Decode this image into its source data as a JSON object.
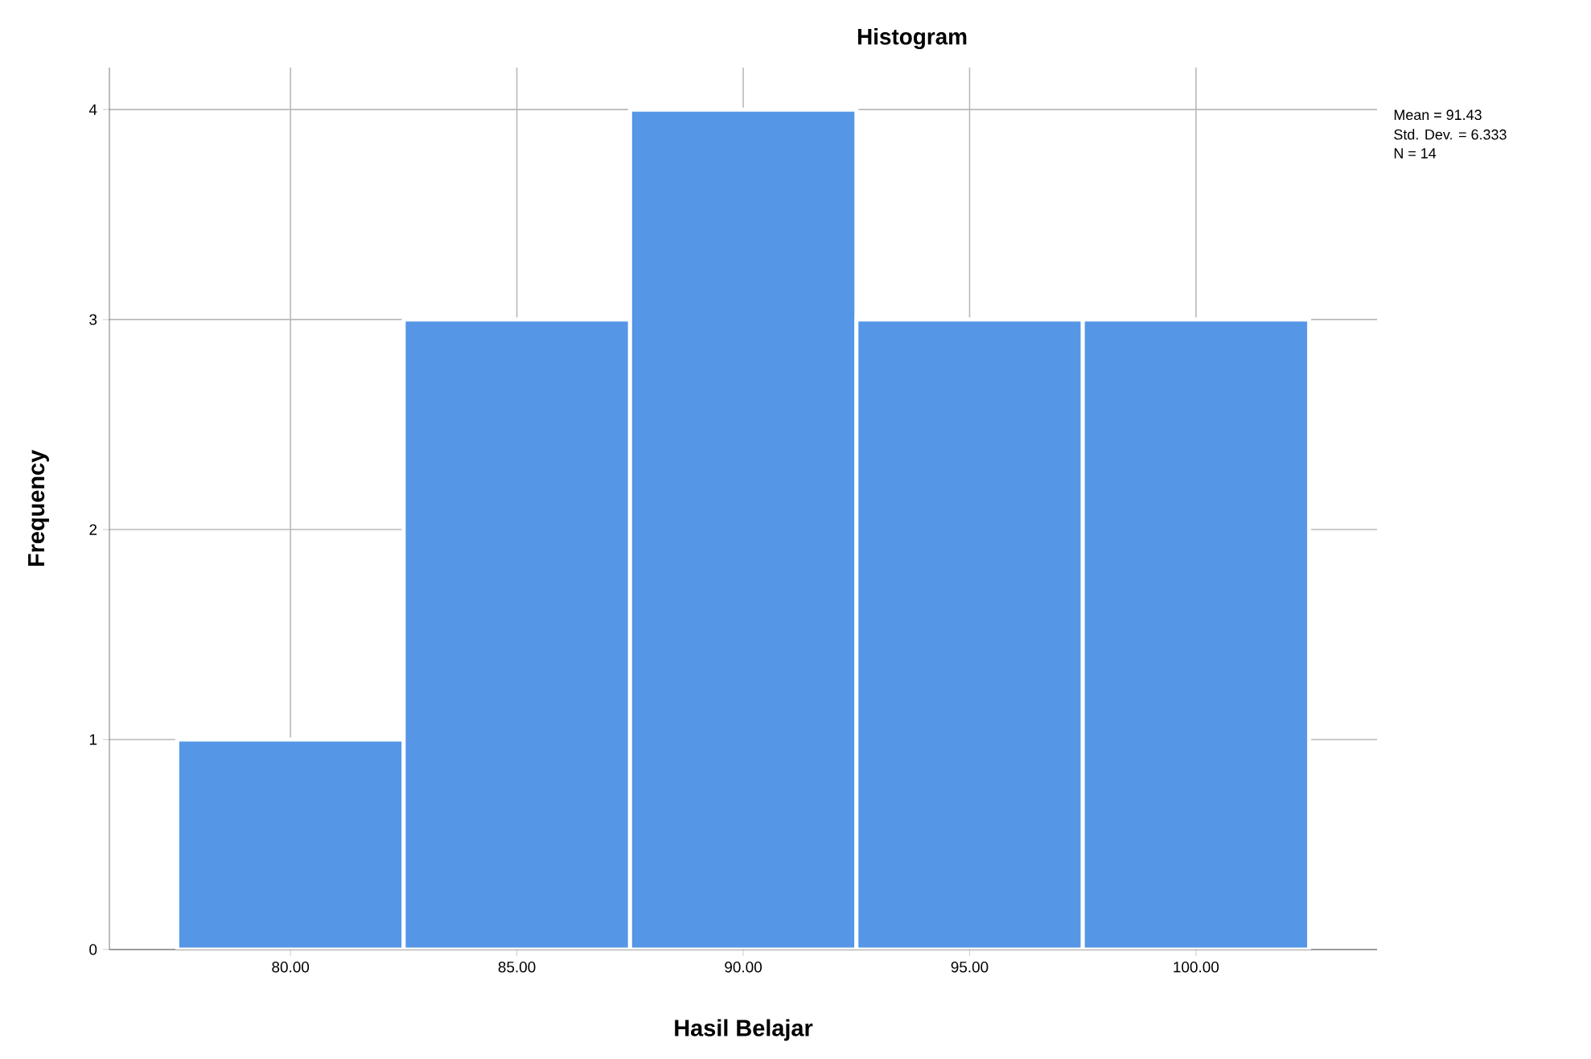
{
  "chart_data": {
    "type": "histogram",
    "title": "Histogram",
    "xlabel": "Hasil Belajar",
    "ylabel": "Frequency",
    "bins": [
      77.5,
      82.5,
      87.5,
      92.5,
      97.5,
      102.5
    ],
    "values": [
      1,
      3,
      4,
      3,
      3
    ],
    "color": "#5596e6",
    "xlim": [
      76,
      104
    ],
    "ylim": [
      0,
      4.2
    ],
    "xticks": [
      {
        "value": 80,
        "label": "80.00"
      },
      {
        "value": 85,
        "label": "85.00"
      },
      {
        "value": 90,
        "label": "90.00"
      },
      {
        "value": 95,
        "label": "95.00"
      },
      {
        "value": 100,
        "label": "100.00"
      }
    ],
    "yticks": [
      0,
      1,
      2,
      3,
      4
    ],
    "grid": true,
    "annotations": [
      "Mean = 91.43",
      "Std. Dev. = 6.333",
      "N = 14"
    ]
  }
}
